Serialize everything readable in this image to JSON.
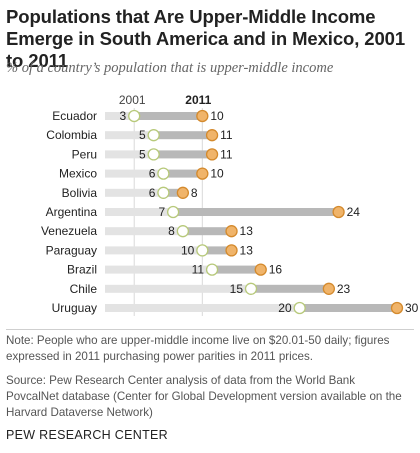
{
  "title": "Populations that Are Upper-Middle Income Emerge in South America and in Mexico, 2001 to 2011",
  "subtitle": "% of a country’s population that is upper-middle income",
  "legend": {
    "start_label": "2001",
    "end_label": "2011"
  },
  "colors": {
    "start_dot": "#ffffff",
    "start_stroke": "#b7c97a",
    "end_dot": "#f0b46a",
    "end_stroke": "#d48a2d",
    "bar_light": "#e3e3e3",
    "bar_dark": "#b8b8b8",
    "grid": "#d9d9d9"
  },
  "chart_data": {
    "type": "dot-range",
    "categories": [
      "Ecuador",
      "Colombia",
      "Peru",
      "Mexico",
      "Bolivia",
      "Argentina",
      "Venezuela",
      "Paraguay",
      "Brazil",
      "Chile",
      "Uruguay"
    ],
    "series": [
      {
        "name": "2001",
        "values": [
          3,
          5,
          5,
          6,
          6,
          7,
          8,
          10,
          11,
          15,
          20
        ]
      },
      {
        "name": "2011",
        "values": [
          10,
          11,
          11,
          10,
          8,
          24,
          13,
          13,
          16,
          23,
          30
        ]
      }
    ],
    "xlim": [
      0,
      30
    ]
  },
  "note": "Note: People who are upper-middle income live on $20.01-50 daily; figures expressed in 2011 purchasing power parities in 2011 prices.",
  "source": "Source: Pew Research Center analysis of data from the World Bank PovcalNet database (Center for Global Development version available on the Harvard Dataverse Network)",
  "brand": "PEW RESEARCH CENTER"
}
